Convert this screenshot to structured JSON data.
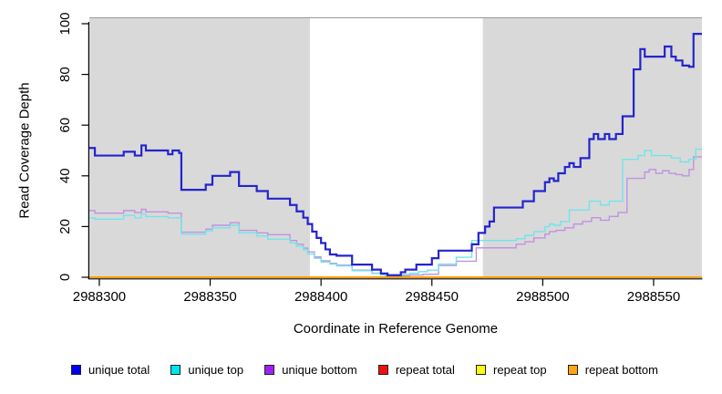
{
  "chart_data": {
    "type": "line",
    "subtype": "step",
    "title": "",
    "xlabel": "Coordinate in Reference Genome",
    "ylabel": "Read Coverage Depth",
    "xlim": [
      2988295.5,
      2988571.8
    ],
    "ylim": [
      0,
      100
    ],
    "x_ticks": [
      2988300,
      2988350,
      2988400,
      2988450,
      2988500,
      2988550
    ],
    "y_ticks": [
      0,
      20,
      40,
      60,
      80,
      100
    ],
    "grid": false,
    "legend_position": "bottom",
    "background_bands": [
      {
        "x0": 2988295.5,
        "x1": 2988395,
        "color": "#d9d9d9"
      },
      {
        "x0": 2988473,
        "x1": 2988571.8,
        "color": "#d9d9d9"
      }
    ],
    "legend": [
      {
        "id": "unique-total",
        "label": "unique total",
        "swatch": "#0202ee"
      },
      {
        "id": "unique-top",
        "label": "unique top",
        "swatch": "#00e4ee"
      },
      {
        "id": "unique-bottom",
        "label": "unique bottom",
        "swatch": "#a122f0"
      },
      {
        "id": "repeat-total",
        "label": "repeat total",
        "swatch": "#ee1111"
      },
      {
        "id": "repeat-top",
        "label": "repeat top",
        "swatch": "#fbfb18"
      },
      {
        "id": "repeat-bottom",
        "label": "repeat bottom",
        "swatch": "#ffa510"
      }
    ],
    "series": [
      {
        "id": "repeat-total",
        "name": "repeat total",
        "line_color": "#dd2222",
        "line_width": 1.3,
        "points": [
          [
            2988295,
            0
          ],
          [
            2988572,
            0
          ]
        ]
      },
      {
        "id": "repeat-top",
        "name": "repeat top",
        "line_color": "#f5f500",
        "line_width": 1.3,
        "points": [
          [
            2988295,
            0
          ],
          [
            2988572,
            0
          ]
        ]
      },
      {
        "id": "unique-bottom",
        "name": "unique bottom",
        "line_color": "#c093e1",
        "line_width": 1.4,
        "points": [
          [
            2988295,
            26.3
          ],
          [
            2988298,
            25.3
          ],
          [
            2988311,
            26.3
          ],
          [
            2988316,
            25.5
          ],
          [
            2988319,
            26.8
          ],
          [
            2988321,
            25.8
          ],
          [
            2988331,
            25.3
          ],
          [
            2988337,
            17.8
          ],
          [
            2988348,
            19
          ],
          [
            2988351,
            20.5
          ],
          [
            2988359,
            21.5
          ],
          [
            2988363,
            18.5
          ],
          [
            2988371,
            17.5
          ],
          [
            2988376,
            16.8
          ],
          [
            2988386,
            14.5
          ],
          [
            2988389,
            13
          ],
          [
            2988392,
            11.5
          ],
          [
            2988394,
            10
          ],
          [
            2988397,
            8
          ],
          [
            2988400,
            6.5
          ],
          [
            2988404,
            5.5
          ],
          [
            2988407,
            4.8
          ],
          [
            2988414,
            2.8
          ],
          [
            2988423,
            1.6
          ],
          [
            2988427,
            1
          ],
          [
            2988430,
            0.6
          ],
          [
            2988440,
            0.9
          ],
          [
            2988446,
            1.2
          ],
          [
            2988453,
            4.6
          ],
          [
            2988461,
            6.3
          ],
          [
            2988470,
            11.6
          ],
          [
            2988488,
            13
          ],
          [
            2988492,
            14
          ],
          [
            2988496,
            15.5
          ],
          [
            2988501,
            17
          ],
          [
            2988503,
            18
          ],
          [
            2988506,
            18.5
          ],
          [
            2988510,
            19.5
          ],
          [
            2988514,
            21
          ],
          [
            2988518,
            22
          ],
          [
            2988522,
            23.5
          ],
          [
            2988526,
            22.5
          ],
          [
            2988530,
            24
          ],
          [
            2988534,
            25.5
          ],
          [
            2988538,
            39
          ],
          [
            2988546,
            41.5
          ],
          [
            2988548,
            42.5
          ],
          [
            2988551,
            41
          ],
          [
            2988554,
            42
          ],
          [
            2988557,
            41
          ],
          [
            2988560,
            40.5
          ],
          [
            2988563,
            40
          ],
          [
            2988566,
            42.5
          ],
          [
            2988568,
            47.5
          ]
        ]
      },
      {
        "id": "unique-top",
        "name": "unique top",
        "line_color": "#72e5e9",
        "line_width": 1.4,
        "points": [
          [
            2988295,
            23.4
          ],
          [
            2988298,
            22.9
          ],
          [
            2988311,
            24.4
          ],
          [
            2988316,
            23.4
          ],
          [
            2988319,
            24.9
          ],
          [
            2988321,
            23.9
          ],
          [
            2988331,
            23.4
          ],
          [
            2988337,
            17
          ],
          [
            2988348,
            18.3
          ],
          [
            2988351,
            19.5
          ],
          [
            2988359,
            20.5
          ],
          [
            2988363,
            17.5
          ],
          [
            2988371,
            16.3
          ],
          [
            2988376,
            15
          ],
          [
            2988386,
            13.5
          ],
          [
            2988389,
            12.2
          ],
          [
            2988392,
            10.8
          ],
          [
            2988394,
            9.2
          ],
          [
            2988397,
            7.5
          ],
          [
            2988400,
            6
          ],
          [
            2988404,
            5.2
          ],
          [
            2988407,
            4.5
          ],
          [
            2988414,
            2.6
          ],
          [
            2988423,
            1.5
          ],
          [
            2988427,
            0.9
          ],
          [
            2988429,
            0.5
          ],
          [
            2988436,
            1.1
          ],
          [
            2988440,
            1.6
          ],
          [
            2988444,
            2.2
          ],
          [
            2988448,
            2.8
          ],
          [
            2988453,
            5.2
          ],
          [
            2988461,
            7.9
          ],
          [
            2988468,
            14.5
          ],
          [
            2988488,
            15.2
          ],
          [
            2988492,
            16.5
          ],
          [
            2988496,
            18
          ],
          [
            2988501,
            20
          ],
          [
            2988503,
            21
          ],
          [
            2988505,
            20.5
          ],
          [
            2988508,
            22
          ],
          [
            2988512,
            26.5
          ],
          [
            2988521,
            30
          ],
          [
            2988526,
            28.5
          ],
          [
            2988530,
            30
          ],
          [
            2988536,
            46.5
          ],
          [
            2988543,
            48
          ],
          [
            2988546,
            50
          ],
          [
            2988549,
            48
          ],
          [
            2988558,
            47
          ],
          [
            2988562,
            45.5
          ],
          [
            2988566,
            46.5
          ],
          [
            2988569,
            50.5
          ]
        ]
      },
      {
        "id": "unique-total",
        "name": "unique total",
        "line_color": "#2424cd",
        "line_width": 2.2,
        "points": [
          [
            2988295,
            51
          ],
          [
            2988298,
            48
          ],
          [
            2988311,
            49.5
          ],
          [
            2988316,
            48
          ],
          [
            2988319,
            52
          ],
          [
            2988321,
            50
          ],
          [
            2988331,
            48.5
          ],
          [
            2988333,
            50
          ],
          [
            2988336,
            49
          ],
          [
            2988337,
            34.5
          ],
          [
            2988348,
            36.5
          ],
          [
            2988351,
            40
          ],
          [
            2988359,
            41.5
          ],
          [
            2988363,
            36
          ],
          [
            2988371,
            34
          ],
          [
            2988376,
            31
          ],
          [
            2988386,
            28.5
          ],
          [
            2988389,
            26
          ],
          [
            2988392,
            23.5
          ],
          [
            2988394,
            21
          ],
          [
            2988396,
            18
          ],
          [
            2988398,
            15.5
          ],
          [
            2988400,
            13.5
          ],
          [
            2988402,
            11
          ],
          [
            2988404,
            9
          ],
          [
            2988407,
            8.5
          ],
          [
            2988414,
            5
          ],
          [
            2988423,
            3
          ],
          [
            2988427,
            1.5
          ],
          [
            2988430,
            0.8
          ],
          [
            2988436,
            2
          ],
          [
            2988438,
            3
          ],
          [
            2988443,
            5
          ],
          [
            2988450,
            7.5
          ],
          [
            2988453,
            10.5
          ],
          [
            2988468,
            13
          ],
          [
            2988471,
            17.5
          ],
          [
            2988474,
            20
          ],
          [
            2988476,
            22
          ],
          [
            2988478,
            27.5
          ],
          [
            2988491,
            30
          ],
          [
            2988496,
            34
          ],
          [
            2988501,
            37.5
          ],
          [
            2988503,
            39
          ],
          [
            2988505,
            38
          ],
          [
            2988507,
            41
          ],
          [
            2988510,
            43.5
          ],
          [
            2988512,
            45
          ],
          [
            2988514,
            43.5
          ],
          [
            2988517,
            47
          ],
          [
            2988521,
            54.5
          ],
          [
            2988523,
            56.5
          ],
          [
            2988525,
            54.5
          ],
          [
            2988528,
            56.5
          ],
          [
            2988530,
            54.5
          ],
          [
            2988533,
            56.5
          ],
          [
            2988536,
            63.5
          ],
          [
            2988541,
            82
          ],
          [
            2988544,
            90
          ],
          [
            2988546,
            87
          ],
          [
            2988555,
            91
          ],
          [
            2988558,
            87
          ],
          [
            2988560,
            85.5
          ],
          [
            2988563,
            83.5
          ],
          [
            2988566,
            83
          ],
          [
            2988568,
            96
          ]
        ]
      },
      {
        "id": "repeat-bottom",
        "name": "repeat bottom",
        "line_color": "#ff9d0a",
        "line_width": 2,
        "points": [
          [
            2988295,
            0
          ],
          [
            2988572,
            0
          ]
        ]
      }
    ]
  }
}
